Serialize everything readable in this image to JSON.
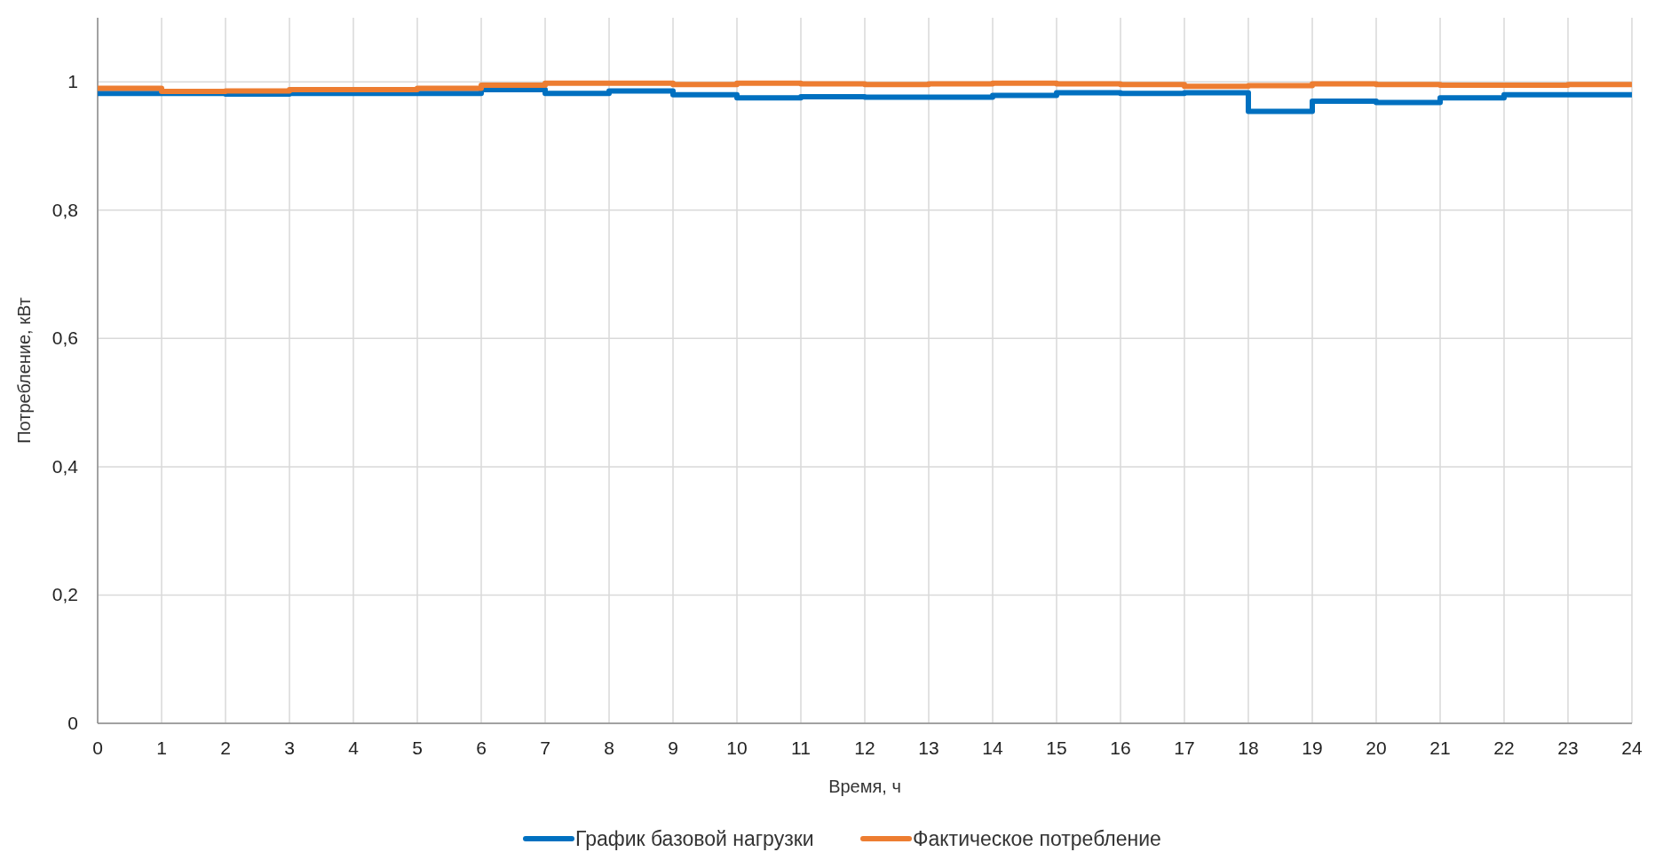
{
  "chart_data": {
    "type": "step",
    "xlabel": "Время, ч",
    "ylabel": "Потребление, кВт",
    "x": [
      0,
      1,
      2,
      3,
      4,
      5,
      6,
      7,
      8,
      9,
      10,
      11,
      12,
      13,
      14,
      15,
      16,
      17,
      18,
      19,
      20,
      21,
      22,
      23,
      24
    ],
    "series": [
      {
        "name": "График базовой нагрузки",
        "color": "#0070c0",
        "values": [
          0.982,
          0.982,
          0.981,
          0.982,
          0.982,
          0.982,
          0.988,
          0.982,
          0.986,
          0.98,
          0.975,
          0.977,
          0.976,
          0.976,
          0.979,
          0.983,
          0.982,
          0.983,
          0.954,
          0.97,
          0.968,
          0.975,
          0.98,
          0.98,
          0.98
        ]
      },
      {
        "name": "Фактическое потребление",
        "color": "#ed7d31",
        "values": [
          0.99,
          0.985,
          0.986,
          0.988,
          0.988,
          0.99,
          0.995,
          0.998,
          0.998,
          0.996,
          0.998,
          0.997,
          0.996,
          0.997,
          0.998,
          0.997,
          0.996,
          0.993,
          0.994,
          0.997,
          0.996,
          0.995,
          0.995,
          0.996,
          0.996
        ]
      }
    ],
    "xlim": [
      0,
      24
    ],
    "xticks": [
      0,
      1,
      2,
      3,
      4,
      5,
      6,
      7,
      8,
      9,
      10,
      11,
      12,
      13,
      14,
      15,
      16,
      17,
      18,
      19,
      20,
      21,
      22,
      23,
      24
    ],
    "ylim": [
      0,
      1.1
    ],
    "yticks": [
      0,
      {
        "value": 0.2,
        "label": "0,2"
      },
      {
        "value": 0.4,
        "label": "0,4"
      },
      {
        "value": 0.6,
        "label": "0,6"
      },
      {
        "value": 0.8,
        "label": "0,8"
      },
      1
    ],
    "grid": true,
    "legend": "bottom",
    "line_style": "solid",
    "marker": "none"
  }
}
